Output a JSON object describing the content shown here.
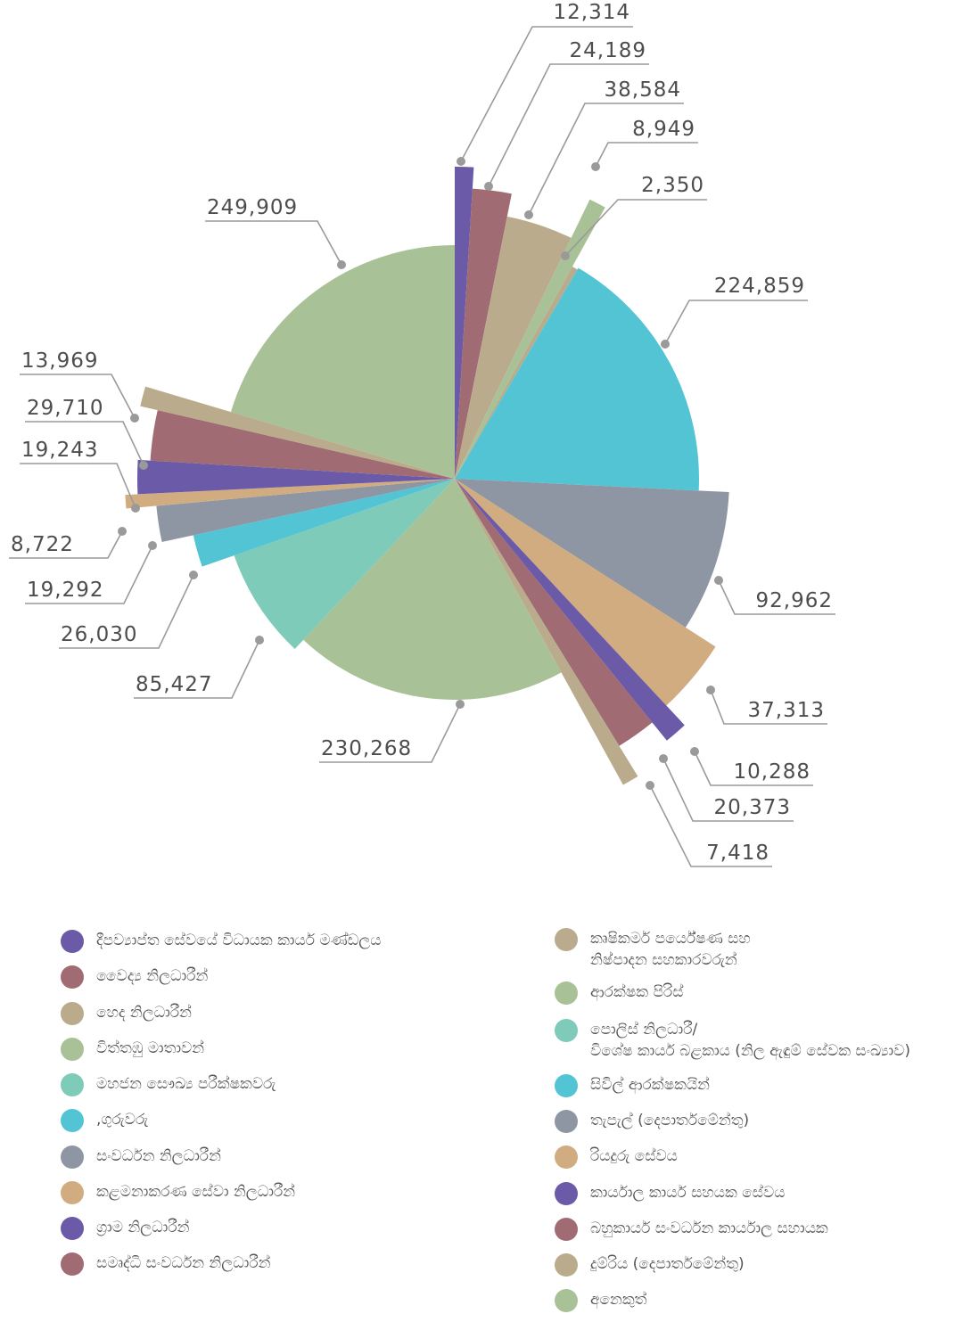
{
  "chart_data": {
    "type": "pie",
    "variant": "polar-area (variable radius) pie",
    "slices": [
      {
        "label": "කාර්යාල කාර්ය  සහයක සේවය",
        "value": 12314,
        "color": "#6a5aa8"
      },
      {
        "label": "බහුකාර්ය සංවර්ධන කාර්යාල සහායක",
        "value": 24189,
        "color": "#a06b73"
      },
      {
        "label": "දුම්රිය (දෙපාර්තමේන්තු)",
        "value": 38584,
        "color": "#b9ab8c"
      },
      {
        "label": "අනෙකුත්",
        "value": 8949,
        "color": "#a9c197"
      },
      {
        "label": "කෘෂිකර්ම පර්යේෂණ සහ නිෂ්පාදන සහකාරවරුන්",
        "value": 2350,
        "color": "#b9ab8c"
      },
      {
        "label": "සිවිල් ආරක්ෂකයින්",
        "value": 224859,
        "color": "#52c4d4"
      },
      {
        "label": "තැපැල් (දෙපාර්තමේන්තු)",
        "value": 92962,
        "color": "#8e96a4"
      },
      {
        "label": "රියදුරු සේවය",
        "value": 37313,
        "color": "#d0ac80"
      },
      {
        "label": "ග්‍රාම නිලධාරීන්",
        "value": 10288,
        "color": "#6a5aa8"
      },
      {
        "label": "සමෘද්ධි සංවර්ධන නිලධාරීන්",
        "value": 20373,
        "color": "#a06b73"
      },
      {
        "label": "හෙද නිලධාරීන්",
        "value": 7418,
        "color": "#b9ab8c"
      },
      {
        "label": "ආරක්ෂක පිරිස්",
        "value": 230268,
        "color": "#a9c197"
      },
      {
        "label": "පොලිස් නිලධාරී/ විශේෂ කාර්ය බළකාය (නිල ඇඳුම් සේවක සංඛ්‍යාව)",
        "value": 85427,
        "color": "#7ecbb9"
      },
      {
        "label": ",ගුරුවරු",
        "value": 26030,
        "color": "#52c4d4"
      },
      {
        "label": "සංවර්ධන නිලධාරීන්",
        "value": 19292,
        "color": "#8e96a4"
      },
      {
        "label": "කළමනාකරණ සේවා නිලධාරීන්",
        "value": 8722,
        "color": "#d0ac80"
      },
      {
        "label": "දීපව්‍යාප්ත සේවයේ විධායක කාර්ය මණ්ඩලය",
        "value": 19243,
        "color": "#6a5aa8"
      },
      {
        "label": "වෛද්‍ය නිලධාරීන්",
        "value": 29710,
        "color": "#a06b73"
      },
      {
        "label": "කෘෂිකර්ම පර්යේෂණ සහ නිෂ්පාදන සහකාරවරුන්",
        "value": 13969,
        "color": "#b9ab8c"
      },
      {
        "label": "විත්තඹු මාතාවන්",
        "value": 249909,
        "color": "#a9c197"
      }
    ],
    "value_labels": [
      "12,314",
      "24,189",
      "38,584",
      "8,949",
      "2,350",
      "224,859",
      "92,962",
      "37,313",
      "10,288",
      "20,373",
      "7,418",
      "230,268",
      "85,427",
      "26,030",
      "19,292",
      "8,722",
      "19,243",
      "29,710",
      "13,969",
      "249,909"
    ],
    "legend_position": "bottom",
    "title": "",
    "grid": false
  },
  "legend": {
    "left": [
      {
        "label": "දීපව්‍යාප්ත සේවයේ විධායක කාර්ය මණ්ඩලය",
        "color": "#6a5aa8"
      },
      {
        "label": "වෛද්‍ය නිලධාරීන්",
        "color": "#a06b73"
      },
      {
        "label": "හෙද නිලධාරීන්",
        "color": "#b9ab8c"
      },
      {
        "label": "විත්තඹු මාතාවන්",
        "color": "#a9c197"
      },
      {
        "label": "මහජන සෞඛ්‍ය පරීක්ෂකවරු",
        "color": "#7ecbb9"
      },
      {
        "label": ",ගුරුවරු",
        "color": "#52c4d4"
      },
      {
        "label": "සංවර්ධන නිලධාරීන්",
        "color": "#8e96a4"
      },
      {
        "label": "කළමනාකරණ සේවා නිලධාරීන්",
        "color": "#d0ac80"
      },
      {
        "label": "ග්‍රාම නිලධාරීන්",
        "color": "#6a5aa8"
      },
      {
        "label": "සමෘද්ධි සංවර්ධන නිලධාරීන්",
        "color": "#a06b73"
      }
    ],
    "right": [
      {
        "label": "කෘෂිකර්ම පර්යේෂණ සහ\nනිෂ්පාදන සහකාරවරුන්",
        "color": "#b9ab8c"
      },
      {
        "label": "ආරක්ෂක පිරිස්",
        "color": "#a9c197"
      },
      {
        "label": "පොලිස් නිලධාරී/\nවිශේෂ කාර්ය බළකාය (නිල ඇඳුම් සේවක සංඛ්‍යාව)",
        "color": "#7ecbb9"
      },
      {
        "label": "සිවිල් ආරක්ෂකයින්",
        "color": "#52c4d4"
      },
      {
        "label": "තැපැල් (දෙපාර්තමේන්තු)",
        "color": "#8e96a4"
      },
      {
        "label": "රියදුරු සේවය",
        "color": "#d0ac80"
      },
      {
        "label": "කාර්යාල කාර්ය  සහයක සේවය",
        "color": "#6a5aa8"
      },
      {
        "label": "බහුකාර්ය සංවර්ධන කාර්යාල සහායක",
        "color": "#a06b73"
      },
      {
        "label": "දුම්රිය (දෙපාර්තමේන්තු)",
        "color": "#b9ab8c"
      },
      {
        "label": "අනෙකුත්",
        "color": "#a9c197"
      }
    ]
  }
}
